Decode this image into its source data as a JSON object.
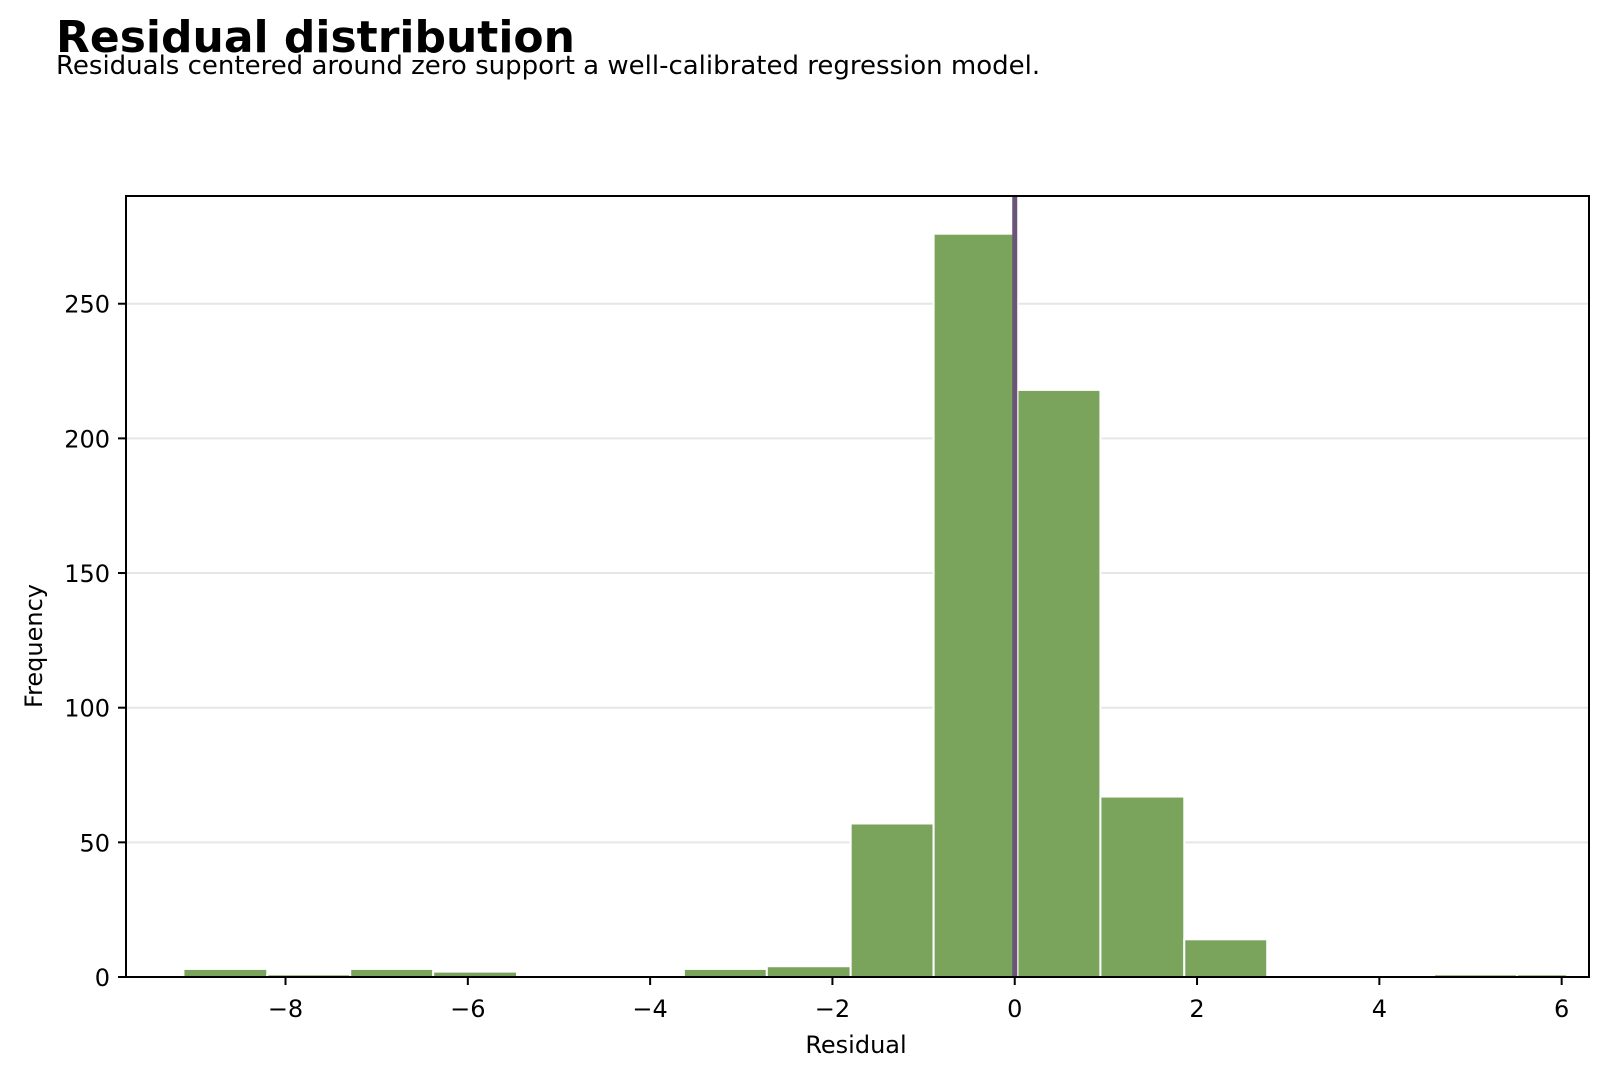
{
  "header": {
    "title": "Residual distribution",
    "subtitle": "Residuals centered around zero support a well-calibrated regression model."
  },
  "colors": {
    "bar": "#7aa35c",
    "reference_line": "#6a5578",
    "grid": "#e6e6e6",
    "axis": "#000000"
  },
  "chart_data": {
    "type": "bar",
    "title": "Residual distribution",
    "subtitle": "Residuals centered around zero support a well-calibrated regression model.",
    "xlabel": "Residual",
    "ylabel": "Frequency",
    "xlim": [
      -9.75,
      6.3
    ],
    "ylim": [
      0,
      290
    ],
    "xticks": [
      -8,
      -6,
      -4,
      -2,
      0,
      2,
      4,
      6
    ],
    "yticks": [
      0,
      50,
      100,
      150,
      200,
      250
    ],
    "grid": "horizontal",
    "reference_line_x": 0,
    "bins": [
      {
        "x0": -9.12,
        "x1": -8.2,
        "count": 3
      },
      {
        "x0": -8.2,
        "x1": -7.29,
        "count": 1
      },
      {
        "x0": -7.29,
        "x1": -6.38,
        "count": 3
      },
      {
        "x0": -6.38,
        "x1": -5.46,
        "count": 2
      },
      {
        "x0": -5.46,
        "x1": -4.55,
        "count": 0
      },
      {
        "x0": -4.55,
        "x1": -3.63,
        "count": 0
      },
      {
        "x0": -3.63,
        "x1": -2.72,
        "count": 3
      },
      {
        "x0": -2.72,
        "x1": -1.8,
        "count": 4
      },
      {
        "x0": -1.8,
        "x1": -0.89,
        "count": 57
      },
      {
        "x0": -0.89,
        "x1": 0.03,
        "count": 276
      },
      {
        "x0": 0.03,
        "x1": 0.94,
        "count": 218
      },
      {
        "x0": 0.94,
        "x1": 1.86,
        "count": 67
      },
      {
        "x0": 1.86,
        "x1": 2.77,
        "count": 14
      },
      {
        "x0": 2.77,
        "x1": 3.69,
        "count": 0
      },
      {
        "x0": 3.69,
        "x1": 4.6,
        "count": 0
      },
      {
        "x0": 4.6,
        "x1": 5.51,
        "count": 1
      },
      {
        "x0": 5.51,
        "x1": 6.06,
        "count": 1
      }
    ]
  }
}
